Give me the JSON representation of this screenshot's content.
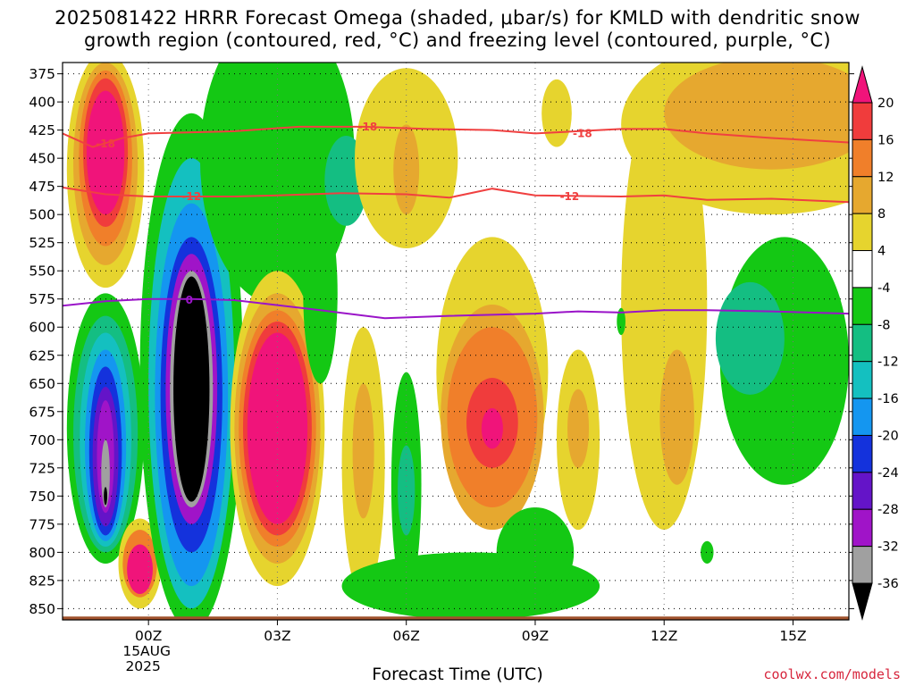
{
  "header": {
    "title_line1": "2025081422 HRRR Forecast Omega (shaded, μbar/s) for KMLD with dendritic snow",
    "title_line2": "growth region (contoured, red, °C) and freezing level (contoured, purple, °C)"
  },
  "footer": {
    "xlabel": "Forecast Time (UTC)",
    "credit": "coolwx.com/models"
  },
  "chart_data": {
    "type": "heatmap",
    "title": "2025081422 HRRR Forecast Omega (shaded, μbar/s) for KMLD with dendritic snow growth region (contoured, red, °C) and freezing level (contoured, purple, °C)",
    "xlabel": "Forecast Time (UTC)",
    "ylabel": "",
    "x_range_hours_from_00Z": [
      -2,
      16.3
    ],
    "y_range_hPa": [
      860,
      365
    ],
    "y_ticks": [
      375,
      400,
      425,
      450,
      475,
      500,
      525,
      550,
      575,
      600,
      625,
      650,
      675,
      700,
      725,
      750,
      775,
      800,
      825,
      850
    ],
    "x_ticks": [
      {
        "hour": 0,
        "label": "00Z",
        "sub1": "15AUG",
        "sub2": "2025"
      },
      {
        "hour": 3,
        "label": "03Z",
        "sub1": "",
        "sub2": ""
      },
      {
        "hour": 6,
        "label": "06Z",
        "sub1": "",
        "sub2": ""
      },
      {
        "hour": 9,
        "label": "09Z",
        "sub1": "",
        "sub2": ""
      },
      {
        "hour": 12,
        "label": "12Z",
        "sub1": "",
        "sub2": ""
      },
      {
        "hour": 15,
        "label": "15Z",
        "sub1": "",
        "sub2": ""
      }
    ],
    "grid": true,
    "colorbar": {
      "labels": [
        "20",
        "16",
        "12",
        "8",
        "4",
        "-4",
        "-8",
        "-12",
        "-16",
        "-20",
        "-24",
        "-28",
        "-32",
        "-36"
      ],
      "bins": [
        {
          "range": ">20",
          "color": "#f0147a"
        },
        {
          "range": "16-20",
          "color": "#f03c3c"
        },
        {
          "range": "12-16",
          "color": "#f07f2a"
        },
        {
          "range": "8-12",
          "color": "#e6a82f"
        },
        {
          "range": "4-8",
          "color": "#e6d42e"
        },
        {
          "range": "-4-4",
          "color": "#ffffff"
        },
        {
          "range": "-8--4",
          "color": "#14c814"
        },
        {
          "range": "-12--8",
          "color": "#14be82"
        },
        {
          "range": "-16--12",
          "color": "#14c0c0"
        },
        {
          "range": "-20--16",
          "color": "#1496f0"
        },
        {
          "range": "-24--20",
          "color": "#1432dc"
        },
        {
          "range": "-28--24",
          "color": "#6414c8"
        },
        {
          "range": "-32--28",
          "color": "#a014c8"
        },
        {
          "range": "-36--32",
          "color": "#a0a0a0"
        },
        {
          "range": "<-36",
          "color": "#000000"
        }
      ]
    },
    "shaded_cells": [
      {
        "t": -1.0,
        "p": 460,
        "rt": 0.9,
        "rp": 105,
        "color": "#e6d42e"
      },
      {
        "t": -1.0,
        "p": 455,
        "rt": 0.75,
        "rp": 90,
        "color": "#e6a82f"
      },
      {
        "t": -1.0,
        "p": 450,
        "rt": 0.62,
        "rp": 78,
        "color": "#f07f2a"
      },
      {
        "t": -1.0,
        "p": 445,
        "rt": 0.52,
        "rp": 66,
        "color": "#f03c3c"
      },
      {
        "t": -1.0,
        "p": 445,
        "rt": 0.44,
        "rp": 55,
        "color": "#f0147a"
      },
      {
        "t": -1.0,
        "p": 690,
        "rt": 0.9,
        "rp": 120,
        "color": "#14c814"
      },
      {
        "t": -1.0,
        "p": 695,
        "rt": 0.75,
        "rp": 105,
        "color": "#14be82"
      },
      {
        "t": -1.0,
        "p": 700,
        "rt": 0.6,
        "rp": 95,
        "color": "#14c0c0"
      },
      {
        "t": -1.0,
        "p": 705,
        "rt": 0.48,
        "rp": 85,
        "color": "#1496f0"
      },
      {
        "t": -1.0,
        "p": 710,
        "rt": 0.38,
        "rp": 75,
        "color": "#1432dc"
      },
      {
        "t": -1.0,
        "p": 715,
        "rt": 0.3,
        "rp": 62,
        "color": "#6414c8"
      },
      {
        "t": -1.0,
        "p": 715,
        "rt": 0.2,
        "rp": 50,
        "color": "#a014c8"
      },
      {
        "t": -1.0,
        "p": 730,
        "rt": 0.1,
        "rp": 30,
        "color": "#a0a0a0"
      },
      {
        "t": -1.0,
        "p": 750,
        "rt": 0.04,
        "rp": 8,
        "color": "#000000"
      },
      {
        "t": -0.2,
        "p": 810,
        "rt": 0.5,
        "rp": 40,
        "color": "#e6d42e"
      },
      {
        "t": -0.2,
        "p": 810,
        "rt": 0.4,
        "rp": 30,
        "color": "#f07f2a"
      },
      {
        "t": -0.2,
        "p": 815,
        "rt": 0.3,
        "rp": 22,
        "color": "#f0147a"
      },
      {
        "t": 1.0,
        "p": 640,
        "rt": 1.2,
        "rp": 230,
        "color": "#14c814"
      },
      {
        "t": 1.0,
        "p": 650,
        "rt": 1.0,
        "rp": 200,
        "color": "#14c0c0"
      },
      {
        "t": 1.0,
        "p": 660,
        "rt": 0.85,
        "rp": 170,
        "color": "#1496f0"
      },
      {
        "t": 1.0,
        "p": 660,
        "rt": 0.72,
        "rp": 140,
        "color": "#1432dc"
      },
      {
        "t": 1.0,
        "p": 655,
        "rt": 0.6,
        "rp": 120,
        "color": "#a014c8"
      },
      {
        "t": 1.0,
        "p": 655,
        "rt": 0.5,
        "rp": 105,
        "color": "#a0a0a0"
      },
      {
        "t": 1.0,
        "p": 655,
        "rt": 0.42,
        "rp": 100,
        "color": "#000000"
      },
      {
        "t": 3.0,
        "p": 450,
        "rt": 1.8,
        "rp": 130,
        "color": "#14c814"
      },
      {
        "t": 4.6,
        "p": 470,
        "rt": 0.5,
        "rp": 40,
        "color": "#14be82"
      },
      {
        "t": 3.0,
        "p": 690,
        "rt": 1.1,
        "rp": 140,
        "color": "#e6d42e"
      },
      {
        "t": 3.0,
        "p": 690,
        "rt": 1.0,
        "rp": 120,
        "color": "#e6a82f"
      },
      {
        "t": 3.0,
        "p": 690,
        "rt": 0.9,
        "rp": 105,
        "color": "#f07f2a"
      },
      {
        "t": 3.0,
        "p": 690,
        "rt": 0.8,
        "rp": 95,
        "color": "#f03c3c"
      },
      {
        "t": 3.0,
        "p": 690,
        "rt": 0.7,
        "rp": 85,
        "color": "#f0147a"
      },
      {
        "t": 4.0,
        "p": 570,
        "rt": 0.4,
        "rp": 80,
        "color": "#14c814"
      },
      {
        "t": 6.0,
        "p": 450,
        "rt": 1.2,
        "rp": 80,
        "color": "#e6d42e"
      },
      {
        "t": 6.0,
        "p": 460,
        "rt": 0.3,
        "rp": 40,
        "color": "#e6a82f"
      },
      {
        "t": 8.0,
        "p": 640,
        "rt": 1.3,
        "rp": 120,
        "color": "#e6d42e"
      },
      {
        "t": 8.0,
        "p": 680,
        "rt": 1.2,
        "rp": 100,
        "color": "#e6a82f"
      },
      {
        "t": 8.0,
        "p": 680,
        "rt": 1.05,
        "rp": 80,
        "color": "#f07f2a"
      },
      {
        "t": 8.0,
        "p": 685,
        "rt": 0.6,
        "rp": 40,
        "color": "#f03c3c"
      },
      {
        "t": 8.0,
        "p": 690,
        "rt": 0.25,
        "rp": 18,
        "color": "#f0147a"
      },
      {
        "t": 6.0,
        "p": 740,
        "rt": 0.35,
        "rp": 100,
        "color": "#14c814"
      },
      {
        "t": 6.0,
        "p": 745,
        "rt": 0.2,
        "rp": 40,
        "color": "#14be82"
      },
      {
        "t": 5.0,
        "p": 720,
        "rt": 0.5,
        "rp": 120,
        "color": "#e6d42e"
      },
      {
        "t": 5.0,
        "p": 710,
        "rt": 0.25,
        "rp": 60,
        "color": "#e6a82f"
      },
      {
        "t": 7.5,
        "p": 830,
        "rt": 3.0,
        "rp": 30,
        "color": "#14c814"
      },
      {
        "t": 9.5,
        "p": 410,
        "rt": 0.35,
        "rp": 30,
        "color": "#e6d42e"
      },
      {
        "t": 10.0,
        "p": 700,
        "rt": 0.5,
        "rp": 80,
        "color": "#e6d42e"
      },
      {
        "t": 10.0,
        "p": 690,
        "rt": 0.25,
        "rp": 35,
        "color": "#e6a82f"
      },
      {
        "t": 12.0,
        "p": 580,
        "rt": 1.0,
        "rp": 200,
        "color": "#e6d42e"
      },
      {
        "t": 12.3,
        "p": 680,
        "rt": 0.4,
        "rp": 60,
        "color": "#e6a82f"
      },
      {
        "t": 14.5,
        "p": 420,
        "rt": 3.5,
        "rp": 80,
        "color": "#e6d42e"
      },
      {
        "t": 14.5,
        "p": 410,
        "rt": 2.5,
        "rp": 50,
        "color": "#e6a82f"
      },
      {
        "t": 14.8,
        "p": 630,
        "rt": 1.5,
        "rp": 110,
        "color": "#14c814"
      },
      {
        "t": 14.0,
        "p": 610,
        "rt": 0.8,
        "rp": 50,
        "color": "#14be82"
      },
      {
        "t": 11.0,
        "p": 595,
        "rt": 0.1,
        "rp": 12,
        "color": "#14c814"
      },
      {
        "t": 13.0,
        "p": 800,
        "rt": 0.15,
        "rp": 10,
        "color": "#14c814"
      },
      {
        "t": 9.0,
        "p": 800,
        "rt": 0.9,
        "rp": 40,
        "color": "#14c814"
      }
    ],
    "contours": [
      {
        "name": "-18",
        "color": "#f04040",
        "points": [
          [
            -2,
            428
          ],
          [
            -1.3,
            440
          ],
          [
            -0.6,
            432
          ],
          [
            0,
            428
          ],
          [
            2,
            426
          ],
          [
            3.5,
            422
          ],
          [
            5,
            422
          ],
          [
            6.5,
            424
          ],
          [
            8,
            425
          ],
          [
            9,
            428
          ],
          [
            10,
            426
          ],
          [
            11,
            424
          ],
          [
            12,
            424
          ],
          [
            13,
            428
          ],
          [
            14.5,
            432
          ],
          [
            16.3,
            436
          ]
        ],
        "labels": [
          {
            "t": -1.0,
            "p": 437
          },
          {
            "t": 5.1,
            "p": 422
          },
          {
            "t": 10.1,
            "p": 428
          }
        ]
      },
      {
        "name": "-12",
        "color": "#f04040",
        "points": [
          [
            -2,
            476
          ],
          [
            -1.0,
            482
          ],
          [
            0,
            484
          ],
          [
            2,
            484
          ],
          [
            3,
            483
          ],
          [
            4.5,
            481
          ],
          [
            6,
            482
          ],
          [
            7,
            485
          ],
          [
            8,
            477
          ],
          [
            9,
            483
          ],
          [
            11,
            484
          ],
          [
            12,
            483
          ],
          [
            13,
            487
          ],
          [
            14.5,
            486
          ],
          [
            16.3,
            489
          ]
        ],
        "labels": [
          {
            "t": 1.0,
            "p": 484
          },
          {
            "t": 9.8,
            "p": 484
          }
        ]
      },
      {
        "name": "0",
        "color": "#9a14c8",
        "points": [
          [
            -2,
            581
          ],
          [
            -1,
            577
          ],
          [
            0,
            575
          ],
          [
            1,
            575
          ],
          [
            2,
            576
          ],
          [
            4,
            585
          ],
          [
            5.5,
            592
          ],
          [
            7,
            590
          ],
          [
            9,
            588
          ],
          [
            10,
            586
          ],
          [
            11,
            587
          ],
          [
            12,
            585
          ],
          [
            13,
            585
          ],
          [
            14.5,
            586
          ],
          [
            16.3,
            588
          ]
        ],
        "labels": [
          {
            "t": 0.95,
            "p": 576
          }
        ]
      }
    ],
    "ground_band_hPa": 857
  }
}
